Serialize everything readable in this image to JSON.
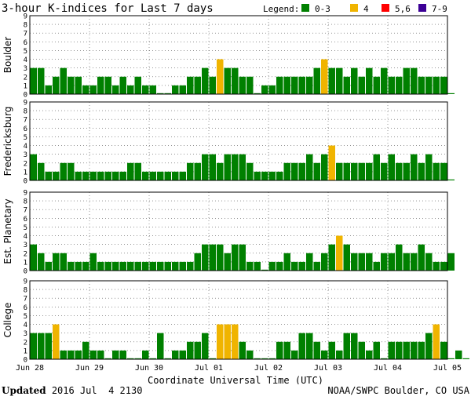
{
  "chart_data": {
    "type": "bar",
    "title": "3-hour K-indices for Last 7 days",
    "legend_title": "Legend:",
    "legend": [
      {
        "label": "0-3",
        "color": "#008000"
      },
      {
        "label": "4",
        "color": "#f0b400"
      },
      {
        "label": "5,6",
        "color": "#ff0000"
      },
      {
        "label": "7-9",
        "color": "#3c0096"
      }
    ],
    "xlabel": "Coordinate Universal Time (UTC)",
    "x_ticks": [
      "Jun 28",
      "Jun 29",
      "Jun 30",
      "Jul 01",
      "Jul 02",
      "Jul 03",
      "Jul 04",
      "Jul 05"
    ],
    "ylim": [
      0,
      9
    ],
    "y_ticks": [
      "0",
      "1",
      "2",
      "3",
      "4",
      "5",
      "6",
      "7",
      "8",
      "9"
    ],
    "grid": true,
    "panels": [
      {
        "name": "Boulder",
        "values": [
          3,
          3,
          1,
          2,
          3,
          2,
          2,
          1,
          1,
          2,
          2,
          1,
          2,
          1,
          2,
          1,
          1,
          0,
          0,
          1,
          1,
          2,
          2,
          3,
          2,
          4,
          3,
          3,
          2,
          2,
          0,
          1,
          1,
          2,
          2,
          2,
          2,
          2,
          3,
          4,
          3,
          3,
          2,
          3,
          2,
          3,
          2,
          3,
          2,
          2,
          3,
          3,
          2,
          2,
          2,
          2,
          0
        ]
      },
      {
        "name": "Fredericksburg",
        "values": [
          3,
          2,
          1,
          1,
          2,
          2,
          1,
          1,
          1,
          1,
          1,
          1,
          1,
          2,
          2,
          1,
          1,
          1,
          1,
          1,
          1,
          2,
          2,
          3,
          3,
          2,
          3,
          3,
          3,
          2,
          1,
          1,
          1,
          1,
          2,
          2,
          2,
          3,
          2,
          3,
          4,
          2,
          2,
          2,
          2,
          2,
          3,
          2,
          3,
          2,
          2,
          3,
          2,
          3,
          2,
          2,
          0
        ]
      },
      {
        "name": "Est. Planetary",
        "values": [
          3,
          2,
          1,
          2,
          2,
          1,
          1,
          1,
          2,
          1,
          1,
          1,
          1,
          1,
          1,
          1,
          1,
          1,
          1,
          1,
          1,
          1,
          2,
          3,
          3,
          3,
          2,
          3,
          3,
          1,
          1,
          0,
          1,
          1,
          2,
          1,
          1,
          2,
          1,
          2,
          3,
          4,
          3,
          2,
          2,
          2,
          1,
          2,
          2,
          3,
          2,
          2,
          3,
          2,
          1,
          1,
          2
        ]
      },
      {
        "name": "College",
        "values": [
          3,
          3,
          3,
          4,
          1,
          1,
          1,
          2,
          1,
          1,
          0,
          1,
          1,
          0,
          0,
          1,
          0,
          3,
          0,
          1,
          1,
          2,
          2,
          3,
          0,
          4,
          4,
          4,
          2,
          1,
          0,
          0,
          0,
          2,
          2,
          1,
          3,
          3,
          2,
          1,
          2,
          1,
          3,
          3,
          2,
          1,
          2,
          0,
          2,
          2,
          2,
          2,
          2,
          3,
          4,
          2,
          0,
          1,
          0
        ]
      }
    ]
  },
  "footer": {
    "updated_label": "Updated",
    "updated_value": " 2016 Jul  4 2130",
    "source": "NOAA/SWPC Boulder, CO USA"
  }
}
